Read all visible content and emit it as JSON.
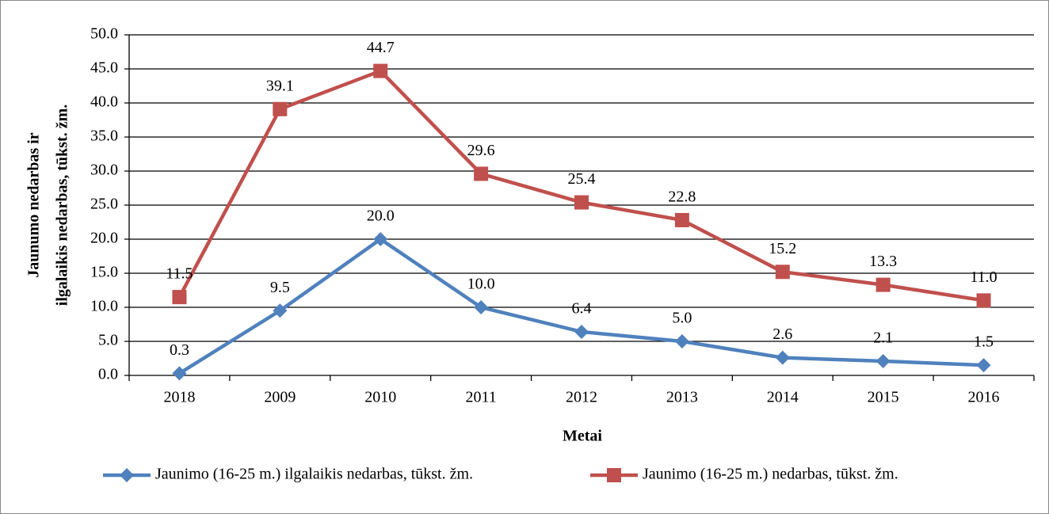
{
  "chart_data": {
    "type": "line",
    "ylabel": [
      "Jaunumo nedarbas ir",
      "ilgalaikis nedarbas, tūkst. žm."
    ],
    "xlabel": "Metai",
    "categories": [
      "2018",
      "2009",
      "2010",
      "2011",
      "2012",
      "2013",
      "2014",
      "2015",
      "2016"
    ],
    "series": [
      {
        "name": "Jaunimo (16-25 m.) ilgalaikis nedarbas, tūkst. žm.",
        "color": "#4f81bd",
        "marker": "diamond",
        "values": [
          0.3,
          9.5,
          20.0,
          10.0,
          6.4,
          5.0,
          2.6,
          2.1,
          1.5
        ],
        "value_labels": [
          "0.3",
          "9.5",
          "20.0",
          "10.0",
          "6.4",
          "5.0",
          "2.6",
          "2.1",
          "1.5"
        ]
      },
      {
        "name": "Jaunimo (16-25 m.) nedarbas, tūkst. žm.",
        "color": "#c0504d",
        "marker": "square",
        "values": [
          11.5,
          39.1,
          44.7,
          29.6,
          25.4,
          22.8,
          15.2,
          13.3,
          11.0
        ],
        "value_labels": [
          "11.5",
          "39.1",
          "44.7",
          "29.6",
          "25.4",
          "22.8",
          "15.2",
          "13.3",
          "11.0"
        ]
      }
    ],
    "ylim": [
      0,
      50
    ],
    "yticks": [
      {
        "value": 0,
        "label": "0.0"
      },
      {
        "value": 5,
        "label": "5.0"
      },
      {
        "value": 10,
        "label": "10.0"
      },
      {
        "value": 15,
        "label": "15.0"
      },
      {
        "value": 20,
        "label": "20.0"
      },
      {
        "value": 25,
        "label": "25.0"
      },
      {
        "value": 30,
        "label": "30.0"
      },
      {
        "value": 35,
        "label": "35.0"
      },
      {
        "value": 40,
        "label": "40.0"
      },
      {
        "value": 45,
        "label": "45.0"
      },
      {
        "value": 50,
        "label": "50.0"
      }
    ],
    "grid": true,
    "legend": "bottom"
  }
}
